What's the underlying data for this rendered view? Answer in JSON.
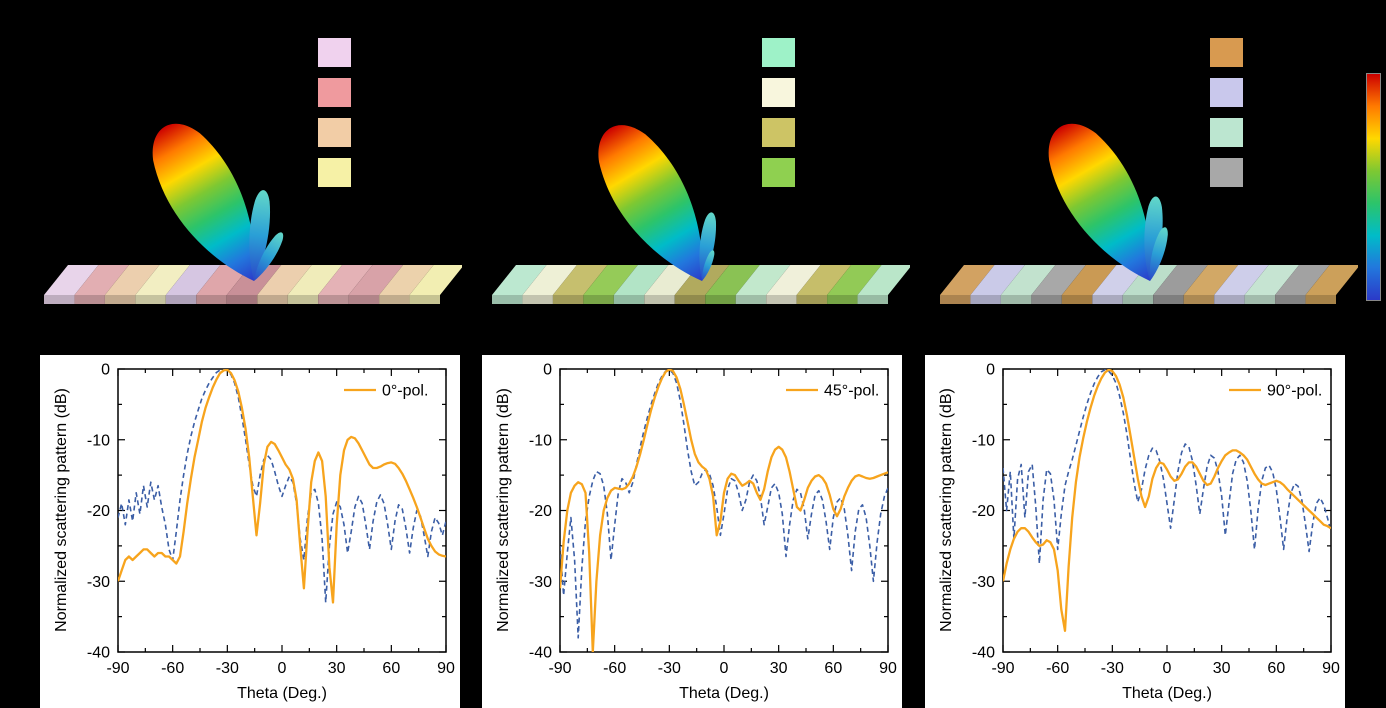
{
  "figure": {
    "background": "#000000",
    "beam_panels": [
      {
        "legend_swatches": [
          "#f0d2ee",
          "#ef9a9e",
          "#f2cda6",
          "#f6f1a6"
        ],
        "plane_stripes": [
          "#e8d4ea",
          "#e2aeb2",
          "#eccfae",
          "#f2eec2",
          "#d6c6e2",
          "#dfa6aa",
          "#c99098",
          "#eccfae",
          "#f0ecba",
          "#e4b2b6",
          "#d8a2a8",
          "#ecd2ac",
          "#f2eeb2"
        ],
        "beam_tilt_deg": -30,
        "side_lobes": [
          {
            "tilt": 6,
            "len": 95
          },
          {
            "tilt": 30,
            "len": 58
          }
        ]
      },
      {
        "legend_swatches": [
          "#9ef2c8",
          "#f8f6dd",
          "#cdc465",
          "#8fd050"
        ],
        "plane_stripes": [
          "#bce8d0",
          "#eef0d6",
          "#c6bf6e",
          "#95cb58",
          "#b2e4c6",
          "#e9ecd2",
          "#b1aa5e",
          "#8ac254",
          "#c2e8cc",
          "#f0f0da",
          "#c6be6a",
          "#92ca56",
          "#bae6c9"
        ],
        "beam_tilt_deg": -31,
        "side_lobes": [
          {
            "tilt": 8,
            "len": 72
          },
          {
            "tilt": 20,
            "len": 34
          }
        ]
      },
      {
        "legend_swatches": [
          "#d89a50",
          "#c9c8ec",
          "#bce6d0",
          "#a8a8a8"
        ],
        "plane_stripes": [
          "#d2a262",
          "#cacae8",
          "#c2e2ce",
          "#a8a8a8",
          "#ca9a54",
          "#d0d0ea",
          "#bcdeca",
          "#9c9c9c",
          "#d2a866",
          "#ceceea",
          "#c6e4d2",
          "#a2a2a2",
          "#cca05a"
        ],
        "beam_tilt_deg": -30,
        "side_lobes": [
          {
            "tilt": 4,
            "len": 88
          },
          {
            "tilt": 16,
            "len": 58
          }
        ]
      }
    ],
    "side_lobe_gradient": [
      "#63d8c8",
      "#2a9fd6",
      "#2b46c8"
    ],
    "colorbar": {
      "gradient_top_to_bottom": [
        "#cc0000",
        "#ff7a00",
        "#ffd800",
        "#7ec832",
        "#2cc46a",
        "#00bcc8",
        "#2277dd",
        "#2b39c8"
      ]
    }
  },
  "chart_data": [
    {
      "type": "line",
      "title": "",
      "xlabel": "Theta (Deg.)",
      "ylabel": "Normalized scattering pattern (dB)",
      "xlim": [
        -90,
        90
      ],
      "ylim": [
        -40,
        0
      ],
      "xticks": [
        -90,
        -60,
        -30,
        0,
        30,
        60,
        90
      ],
      "yticks": [
        0,
        -10,
        -20,
        -30,
        -40
      ],
      "x_start": -90,
      "x_step": 2,
      "grid": false,
      "legend": {
        "label": "0°-pol.",
        "color": "#f7a41d",
        "position": "top-right"
      },
      "series": [
        {
          "name": "0°-pol.",
          "style": "solid",
          "color": "#f7a41d",
          "values": [
            -30,
            -28.5,
            -27,
            -26.5,
            -27,
            -26.5,
            -26,
            -25.5,
            -25.5,
            -26,
            -26.5,
            -26,
            -26,
            -26.5,
            -26.5,
            -27,
            -27.5,
            -26.5,
            -23,
            -19,
            -15.5,
            -12.5,
            -10,
            -7.5,
            -5.5,
            -4,
            -2.6,
            -1.5,
            -0.6,
            -0.2,
            -0.1,
            -0.6,
            -1.6,
            -3.2,
            -5.5,
            -8.5,
            -12.5,
            -18,
            -23.5,
            -19,
            -13.5,
            -11,
            -10.3,
            -10.6,
            -11.5,
            -12.5,
            -13.5,
            -14.2,
            -15.5,
            -18.5,
            -25,
            -31,
            -23,
            -16,
            -13,
            -11.8,
            -13,
            -18,
            -28,
            -33,
            -22,
            -15,
            -11.5,
            -10,
            -9.6,
            -9.8,
            -10.5,
            -11.5,
            -12.5,
            -13.5,
            -14,
            -14,
            -13.8,
            -13.5,
            -13.3,
            -13.2,
            -13.4,
            -14,
            -14.8,
            -15.8,
            -17,
            -18.2,
            -19.5,
            -21,
            -22.5,
            -24,
            -25,
            -25.8,
            -26.2,
            -26.4,
            -26.5
          ]
        },
        {
          "name": "dashed",
          "style": "dashed",
          "color": "#3b5ea6",
          "values": [
            -21,
            -19,
            -22,
            -18.5,
            -21.5,
            -17.5,
            -20.5,
            -16.5,
            -19.5,
            -16,
            -18.5,
            -16.5,
            -19.5,
            -22,
            -25.5,
            -27,
            -23,
            -18.5,
            -15,
            -12,
            -9.5,
            -7.5,
            -5.8,
            -4.2,
            -3,
            -2,
            -1.2,
            -0.5,
            -0.15,
            -0.05,
            -0.2,
            -0.8,
            -2,
            -4,
            -6.8,
            -10,
            -13.5,
            -16.5,
            -18,
            -15,
            -12.8,
            -12.2,
            -12.8,
            -14.5,
            -16.5,
            -18,
            -16.5,
            -15.2,
            -16,
            -19,
            -24,
            -27,
            -21,
            -17.5,
            -17,
            -19,
            -24,
            -33,
            -25,
            -20.5,
            -18.8,
            -19.5,
            -22,
            -26,
            -23,
            -19.5,
            -18,
            -19,
            -22,
            -25.5,
            -21.5,
            -18.8,
            -17.8,
            -19,
            -22,
            -25.5,
            -21.5,
            -19.2,
            -19.8,
            -22.5,
            -26,
            -22.5,
            -20,
            -20.8,
            -23.5,
            -26.5,
            -23,
            -21,
            -21.8,
            -23.5,
            -21.5
          ]
        }
      ]
    },
    {
      "type": "line",
      "title": "",
      "xlabel": "Theta (Deg.)",
      "ylabel": "Normalized scattering pattern (dB)",
      "xlim": [
        -90,
        90
      ],
      "ylim": [
        -40,
        0
      ],
      "xticks": [
        -90,
        -60,
        -30,
        0,
        30,
        60,
        90
      ],
      "yticks": [
        0,
        -10,
        -20,
        -30,
        -40
      ],
      "x_start": -90,
      "x_step": 2,
      "grid": false,
      "legend": {
        "label": "45°-pol.",
        "color": "#f7a41d",
        "position": "top-right"
      },
      "series": [
        {
          "name": "45°-pol.",
          "style": "solid",
          "color": "#f7a41d",
          "values": [
            -31,
            -24.5,
            -20,
            -17.5,
            -16.5,
            -16,
            -16.3,
            -17.5,
            -26,
            -40,
            -30,
            -23.5,
            -20,
            -18.2,
            -17.2,
            -16.8,
            -16.9,
            -17,
            -16.8,
            -16.2,
            -15.2,
            -13.8,
            -12,
            -10,
            -7.8,
            -5.8,
            -4,
            -2.5,
            -1.3,
            -0.4,
            -0.05,
            -0.3,
            -1.2,
            -2.8,
            -5,
            -7.5,
            -10,
            -12,
            -13.2,
            -13.8,
            -14.2,
            -15.5,
            -18,
            -23.5,
            -21.5,
            -17.5,
            -15.5,
            -14.8,
            -15,
            -15.8,
            -16.5,
            -16.2,
            -15.8,
            -16.2,
            -17.5,
            -18.5,
            -17,
            -14.5,
            -12.5,
            -11.4,
            -11,
            -11.4,
            -12.5,
            -14.5,
            -17,
            -19.5,
            -20,
            -18.5,
            -16.8,
            -15.8,
            -15.2,
            -15,
            -15.4,
            -16.2,
            -17.8,
            -19.8,
            -20.8,
            -19.8,
            -18,
            -16.8,
            -15.8,
            -15.2,
            -15,
            -15.2,
            -15.4,
            -15.5,
            -15.4,
            -15.2,
            -15,
            -14.8,
            -14.6
          ]
        },
        {
          "name": "dashed",
          "style": "dashed",
          "color": "#3b5ea6",
          "values": [
            -25,
            -32,
            -26,
            -21,
            -27,
            -38,
            -28,
            -21.5,
            -18,
            -15.8,
            -14.5,
            -14.8,
            -16.5,
            -20.5,
            -27,
            -22,
            -17.5,
            -15.5,
            -16,
            -17.5,
            -16,
            -13.5,
            -11,
            -8.8,
            -6.8,
            -5,
            -3.4,
            -2,
            -1,
            -0.3,
            -0.1,
            -0.6,
            -2,
            -4.5,
            -7.8,
            -11.5,
            -14.5,
            -16.5,
            -16,
            -14.8,
            -14.2,
            -14.8,
            -16.5,
            -19.5,
            -23.5,
            -20.5,
            -17,
            -15.5,
            -15.8,
            -17.5,
            -20,
            -18.5,
            -16,
            -15,
            -15.8,
            -18,
            -22,
            -19.5,
            -16.8,
            -16.2,
            -17.5,
            -20.5,
            -26.5,
            -22,
            -18.5,
            -17,
            -17.5,
            -19.8,
            -24,
            -20.5,
            -17.8,
            -17.2,
            -18.5,
            -21.5,
            -25.5,
            -21,
            -18.8,
            -18.2,
            -19.8,
            -23.5,
            -28.5,
            -23,
            -19.8,
            -19.2,
            -21,
            -25,
            -30,
            -24.5,
            -20.5,
            -18,
            -16.8
          ]
        }
      ]
    },
    {
      "type": "line",
      "title": "",
      "xlabel": "Theta (Deg.)",
      "ylabel": "Normalized scattering pattern (dB)",
      "xlim": [
        -90,
        90
      ],
      "ylim": [
        -40,
        0
      ],
      "xticks": [
        -90,
        -60,
        -30,
        0,
        30,
        60,
        90
      ],
      "yticks": [
        0,
        -10,
        -20,
        -30,
        -40
      ],
      "x_start": -90,
      "x_step": 2,
      "grid": false,
      "legend": {
        "label": "90°-pol.",
        "color": "#f7a41d",
        "position": "top-right"
      },
      "series": [
        {
          "name": "90°-pol.",
          "style": "solid",
          "color": "#f7a41d",
          "values": [
            -30,
            -27.5,
            -25.5,
            -24,
            -23,
            -22.5,
            -22.5,
            -23,
            -23.8,
            -24.5,
            -25,
            -24.8,
            -24.2,
            -24.5,
            -25.5,
            -28.5,
            -34,
            -37,
            -28,
            -21,
            -16,
            -12.5,
            -9.8,
            -7.5,
            -5.5,
            -3.8,
            -2.4,
            -1.3,
            -0.5,
            -0.1,
            -0.3,
            -1,
            -2.2,
            -4,
            -6.5,
            -9.5,
            -12.5,
            -15.5,
            -18,
            -19.5,
            -18,
            -15.5,
            -14,
            -13.2,
            -13.4,
            -14.2,
            -15.2,
            -15.8,
            -15.6,
            -14.8,
            -13.8,
            -13.2,
            -13.2,
            -13.8,
            -14.8,
            -15.8,
            -16.4,
            -16.2,
            -15.2,
            -14,
            -13,
            -12.2,
            -11.8,
            -11.5,
            -11.5,
            -11.8,
            -12.2,
            -12.8,
            -13.8,
            -14.8,
            -15.6,
            -16.2,
            -16.4,
            -16.2,
            -16,
            -15.8,
            -16,
            -16.4,
            -17,
            -17.5,
            -18,
            -18.5,
            -19,
            -19.5,
            -20,
            -20.5,
            -21,
            -21.5,
            -22,
            -22.2,
            -22.5
          ]
        },
        {
          "name": "dashed",
          "style": "dashed",
          "color": "#3b5ea6",
          "values": [
            -14,
            -20,
            -14.5,
            -24,
            -15.5,
            -13.5,
            -21,
            -14.5,
            -13.5,
            -19.5,
            -27.5,
            -18.5,
            -14.2,
            -14.8,
            -18.5,
            -25.5,
            -20.5,
            -16.5,
            -14.5,
            -12.8,
            -10.8,
            -8.8,
            -6.8,
            -5,
            -3.4,
            -2.1,
            -1.1,
            -0.4,
            -0.1,
            -0.3,
            -0.9,
            -2,
            -3.8,
            -6.2,
            -9.2,
            -12.8,
            -16.2,
            -18.8,
            -17,
            -14.2,
            -12.2,
            -11.2,
            -11.5,
            -13,
            -15.5,
            -19,
            -22.5,
            -18.5,
            -14.5,
            -11.8,
            -10.6,
            -11,
            -13,
            -16.5,
            -20.5,
            -17,
            -13.8,
            -12.2,
            -12.6,
            -14.5,
            -18,
            -23.5,
            -19,
            -14.8,
            -12.8,
            -12.2,
            -13.2,
            -15.8,
            -20,
            -25.5,
            -19.8,
            -15.8,
            -14,
            -13.6,
            -14.6,
            -17,
            -21,
            -25.5,
            -20.8,
            -17.5,
            -16.2,
            -16.6,
            -18.5,
            -22,
            -25.8,
            -21.8,
            -19,
            -18.2,
            -19.2,
            -21,
            -23
          ]
        }
      ]
    }
  ]
}
